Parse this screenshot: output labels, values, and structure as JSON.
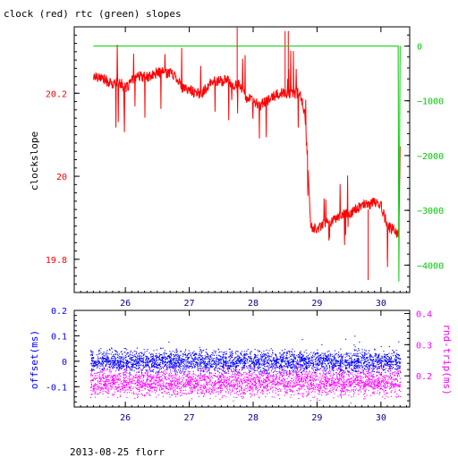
{
  "title": "clock (red) rtc (green) slopes",
  "footer": "2013-08-25 florr",
  "colors": {
    "red": "#ff0000",
    "green": "#00cc00",
    "blue": "#0000ff",
    "magenta": "#ff00ff",
    "axis": "#000000"
  },
  "chart_data": [
    {
      "type": "line",
      "title": "clock (red) rtc (green) slopes",
      "xlim": [
        25.2,
        30.45
      ],
      "x_ticks": [
        26,
        27,
        28,
        29,
        30
      ],
      "x_tick_labels": [
        "26",
        "27",
        "28",
        "29",
        "30"
      ],
      "ylabel": "clockslope",
      "ylim": [
        19.72,
        20.36
      ],
      "y_ticks": [
        19.8,
        20,
        20.2
      ],
      "y_tick_labels": [
        "19.8",
        "20",
        "20.2"
      ],
      "y2lim": [
        -4500,
        350
      ],
      "y2_ticks": [
        0,
        -1000,
        -2000,
        -3000,
        -4000
      ],
      "y2_tick_labels": [
        "0",
        "−1000",
        "−2000",
        "−3000",
        "−4000"
      ],
      "series": [
        {
          "name": "clock",
          "color": "red",
          "axis": "left",
          "x": [
            25.5,
            25.6,
            25.7,
            25.8,
            25.9,
            26.0,
            26.1,
            26.2,
            26.3,
            26.4,
            26.5,
            26.6,
            26.7,
            26.8,
            26.9,
            27.0,
            27.1,
            27.2,
            27.3,
            27.4,
            27.5,
            27.6,
            27.7,
            27.8,
            27.9,
            28.0,
            28.1,
            28.2,
            28.3,
            28.4,
            28.5,
            28.6,
            28.7,
            28.75,
            28.8,
            28.85,
            28.9,
            29.0,
            29.1,
            29.2,
            29.3,
            29.4,
            29.5,
            29.6,
            29.7,
            29.8,
            29.9,
            30.0,
            30.1,
            30.2,
            30.25,
            30.28,
            30.29,
            30.3
          ],
          "y": [
            20.24,
            20.24,
            20.23,
            20.22,
            20.23,
            20.21,
            20.23,
            20.24,
            20.24,
            20.24,
            20.25,
            20.25,
            20.25,
            20.24,
            20.21,
            20.21,
            20.2,
            20.2,
            20.22,
            20.23,
            20.23,
            20.23,
            20.22,
            20.22,
            20.19,
            20.18,
            20.17,
            20.18,
            20.19,
            20.2,
            20.2,
            20.2,
            20.2,
            20.19,
            20.16,
            20.05,
            19.88,
            19.87,
            19.89,
            19.89,
            19.9,
            19.91,
            19.91,
            19.92,
            19.93,
            19.93,
            19.94,
            19.93,
            19.88,
            19.87,
            19.86,
            19.87,
            19.96,
            20.07
          ]
        },
        {
          "name": "rtc",
          "color": "green",
          "axis": "right",
          "x": [
            25.5,
            30.24,
            30.27,
            30.28,
            30.3
          ],
          "y": [
            0,
            0,
            0,
            -4300,
            0
          ]
        }
      ]
    },
    {
      "type": "scatter",
      "xlim": [
        25.2,
        30.45
      ],
      "x_ticks": [
        26,
        27,
        28,
        29,
        30
      ],
      "x_tick_labels": [
        "26",
        "27",
        "28",
        "29",
        "30"
      ],
      "ylabel": "offset(ms)",
      "ylim": [
        -0.18,
        0.2
      ],
      "y_ticks": [
        0.2,
        0.1,
        0,
        -0.1
      ],
      "y_tick_labels": [
        "0.2",
        "0.1",
        "0",
        "-0.1"
      ],
      "y2label": "rnd-trip(ms)",
      "y2lim": [
        0.1,
        0.41
      ],
      "y2_ticks": [
        0.4,
        0.3,
        0.2
      ],
      "y2_tick_labels": [
        "0.4",
        "0.3",
        "0.2"
      ],
      "series": [
        {
          "name": "offset",
          "color": "blue",
          "axis": "left",
          "x_range": [
            25.45,
            30.3
          ],
          "y_center": 0.0,
          "y_spread": 0.03
        },
        {
          "name": "rnd-trip",
          "color": "magenta",
          "axis": "right",
          "x_range": [
            25.45,
            30.3
          ],
          "y_center": 0.18,
          "y_spread": 0.03
        }
      ]
    }
  ]
}
